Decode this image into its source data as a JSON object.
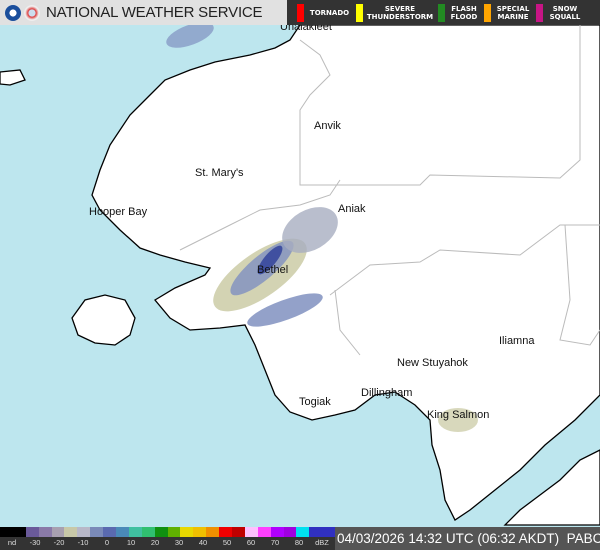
{
  "header": {
    "title": "NATIONAL WEATHER SERVICE",
    "logos": [
      "noaa-logo",
      "nws-logo"
    ]
  },
  "warnings": [
    {
      "label": "TORNADO",
      "color": "#ff0000"
    },
    {
      "label": "SEVERE THUNDERSTORM",
      "color": "#ffff00"
    },
    {
      "label": "FLASH FLOOD",
      "color": "#228b22"
    },
    {
      "label": "SPECIAL MARINE",
      "color": "#ffa500"
    },
    {
      "label": "SNOW SQUALL",
      "color": "#c71585"
    }
  ],
  "cities": [
    {
      "name": "Unalakleet"
    },
    {
      "name": "Anvik"
    },
    {
      "name": "St. Mary's"
    },
    {
      "name": "Hooper Bay"
    },
    {
      "name": "Aniak"
    },
    {
      "name": "Bethel"
    },
    {
      "name": "New Stuyahok"
    },
    {
      "name": "Iliamna"
    },
    {
      "name": "Dillingham"
    },
    {
      "name": "Togiak"
    },
    {
      "name": "King Salmon"
    }
  ],
  "legend": {
    "ticks": [
      "nd",
      "-30",
      "-20",
      "-10",
      "0",
      "10",
      "20",
      "30",
      "40",
      "50",
      "60",
      "70",
      "80",
      "dBZ"
    ]
  },
  "colors": {
    "sea": "#bde6ee",
    "land": "#ffffff",
    "radar_light": "#c8c8a0",
    "radar_mid": "#8090c0",
    "radar_dark": "#4050a0"
  },
  "status": {
    "timestamp": "04/03/2026 14:32 UTC (06:32 AKDT)",
    "station": "PABC"
  }
}
